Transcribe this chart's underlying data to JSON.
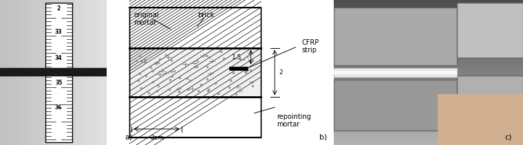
{
  "fig_width": 7.6,
  "fig_height": 2.11,
  "dpi": 100,
  "bg_color": "#ffffff",
  "panel_a_label": "a)",
  "panel_b_label": "b)",
  "panel_c_label": "c)",
  "label_original_mortar": "original\nmortar",
  "label_brick": "brick",
  "label_cfrp": "CFRP\nstrip",
  "label_repointing": "repointing\nmortar",
  "label_15": "1,5",
  "label_2": "2",
  "label_2cm": "2cm"
}
